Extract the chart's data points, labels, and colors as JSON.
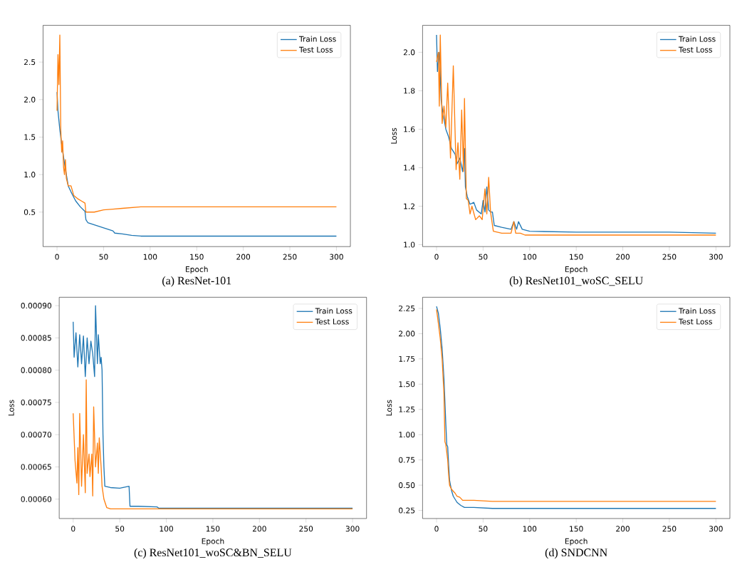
{
  "chart_data": [
    {
      "type": "line",
      "title": "(a) ResNet-101",
      "xlabel": "Epoch",
      "xlim": [
        -15,
        315
      ],
      "ylim": [
        0.04,
        2.99
      ],
      "xticks": [
        0,
        50,
        100,
        150,
        200,
        250,
        300
      ],
      "yticks": [
        0.5,
        {
          "value": 1.0,
          "label": "1.0"
        },
        1.5,
        {
          "value": 2.0,
          "label": "2.0"
        },
        2.5
      ],
      "legend": "top right",
      "grid": false,
      "marker": "none",
      "line_style": "solid",
      "series": [
        {
          "name": "Train Loss",
          "color": "#1f77b4",
          "x": [
            0,
            1,
            3,
            5,
            8,
            10,
            12,
            15,
            20,
            25,
            30,
            31,
            33,
            40,
            50,
            60,
            62,
            70,
            80,
            90,
            100,
            150,
            200,
            250,
            300
          ],
          "values": [
            2.1,
            1.85,
            1.6,
            1.4,
            1.15,
            1.0,
            0.85,
            0.77,
            0.65,
            0.57,
            0.51,
            0.4,
            0.36,
            0.33,
            0.29,
            0.25,
            0.22,
            0.21,
            0.19,
            0.18,
            0.18,
            0.18,
            0.18,
            0.18,
            0.18
          ]
        },
        {
          "name": "Test Loss",
          "color": "#ff7f0e",
          "x": [
            0,
            1,
            2,
            3,
            4,
            5,
            6,
            7,
            8,
            9,
            10,
            12,
            15,
            18,
            22,
            26,
            30,
            31,
            40,
            50,
            60,
            70,
            80,
            90,
            100,
            150,
            200,
            250,
            300
          ],
          "values": [
            1.85,
            2.6,
            2.2,
            2.86,
            1.6,
            1.3,
            1.45,
            1.1,
            1.0,
            1.2,
            0.95,
            0.85,
            0.85,
            0.72,
            0.68,
            0.65,
            0.62,
            0.5,
            0.5,
            0.53,
            0.54,
            0.55,
            0.56,
            0.57,
            0.57,
            0.57,
            0.57,
            0.57,
            0.57
          ]
        }
      ]
    },
    {
      "type": "line",
      "title": "(b) ResNet101_woSC_SELU",
      "xlabel": "Epoch",
      "ylabel": "Loss",
      "xlim": [
        -15,
        315
      ],
      "ylim": [
        0.99,
        2.14
      ],
      "xticks": [
        0,
        50,
        100,
        150,
        200,
        250,
        300
      ],
      "yticks": [
        {
          "value": 1.0,
          "label": "1.0"
        },
        1.2,
        1.4,
        1.6,
        1.8,
        {
          "value": 2.0,
          "label": "2.0"
        }
      ],
      "legend": "top right",
      "grid": false,
      "marker": "none",
      "line_style": "solid",
      "series": [
        {
          "name": "Train Loss",
          "color": "#1f77b4",
          "x": [
            0,
            1,
            3,
            5,
            7,
            10,
            13,
            16,
            20,
            22,
            25,
            28,
            30,
            31,
            33,
            36,
            40,
            43,
            48,
            50,
            52,
            54,
            56,
            58,
            60,
            62,
            70,
            80,
            83,
            86,
            88,
            92,
            100,
            150,
            200,
            250,
            300
          ],
          "values": [
            2.09,
            1.9,
            2.0,
            1.75,
            1.68,
            1.6,
            1.56,
            1.5,
            1.47,
            1.42,
            1.45,
            1.38,
            1.5,
            1.3,
            1.25,
            1.21,
            1.22,
            1.18,
            1.16,
            1.23,
            1.17,
            1.3,
            1.18,
            1.17,
            1.17,
            1.1,
            1.09,
            1.08,
            1.12,
            1.08,
            1.12,
            1.08,
            1.07,
            1.065,
            1.065,
            1.065,
            1.06
          ]
        },
        {
          "name": "Test Loss",
          "color": "#ff7f0e",
          "x": [
            0,
            2,
            3,
            4,
            6,
            8,
            10,
            12,
            15,
            18,
            21,
            23,
            25,
            27,
            29,
            30,
            32,
            34,
            36,
            38,
            42,
            46,
            49,
            52,
            54,
            56,
            58,
            61,
            70,
            80,
            83,
            85,
            90,
            95,
            100,
            150,
            200,
            250,
            300
          ],
          "values": [
            1.95,
            2.0,
            1.72,
            2.09,
            1.63,
            1.72,
            1.61,
            1.84,
            1.45,
            1.93,
            1.39,
            1.53,
            1.34,
            1.7,
            1.38,
            1.76,
            1.24,
            1.23,
            1.16,
            1.2,
            1.13,
            1.15,
            1.13,
            1.29,
            1.16,
            1.35,
            1.17,
            1.07,
            1.06,
            1.06,
            1.12,
            1.06,
            1.06,
            1.05,
            1.05,
            1.05,
            1.05,
            1.05,
            1.05
          ]
        }
      ]
    },
    {
      "type": "line",
      "title": "(c) ResNet101_woSC&BN_SELU",
      "xlabel": "Epoch",
      "ylabel": "Loss",
      "xlim": [
        -15,
        315
      ],
      "ylim": [
        0.00057,
        0.000913
      ],
      "xticks": [
        0,
        50,
        100,
        150,
        200,
        250,
        300
      ],
      "yticks": [
        {
          "value": 0.0006,
          "label": "0.00060"
        },
        {
          "value": 0.00065,
          "label": "0.00065"
        },
        {
          "value": 0.0007,
          "label": "0.00070"
        },
        {
          "value": 0.00075,
          "label": "0.00075"
        },
        {
          "value": 0.0008,
          "label": "0.00080"
        },
        {
          "value": 0.00085,
          "label": "0.00085"
        },
        {
          "value": 0.0009,
          "label": "0.00090"
        }
      ],
      "legend": "top right",
      "grid": false,
      "marker": "none",
      "line_style": "solid",
      "series": [
        {
          "name": "Train Loss",
          "color": "#1f77b4",
          "x": [
            0,
            1,
            3,
            5,
            7,
            9,
            11,
            13,
            15,
            17,
            19,
            21,
            23,
            24,
            26,
            27,
            29,
            30,
            31,
            32,
            33,
            34,
            40,
            50,
            60,
            61,
            70,
            90,
            92,
            120,
            300
          ],
          "values": [
            0.000875,
            0.00082,
            0.000858,
            0.000805,
            0.000855,
            0.00081,
            0.000853,
            0.00079,
            0.00085,
            0.00081,
            0.000845,
            0.000825,
            0.00079,
            0.0009,
            0.00081,
            0.000855,
            0.00081,
            0.00082,
            0.0008,
            0.0007,
            0.00065,
            0.00062,
            0.000618,
            0.000617,
            0.00062,
            0.000589,
            0.000589,
            0.000588,
            0.000586,
            0.000586,
            0.000586
          ]
        },
        {
          "name": "Test Loss",
          "color": "#ff7f0e",
          "x": [
            0,
            2,
            4,
            5,
            6,
            7,
            9,
            11,
            13,
            14,
            15,
            17,
            18,
            20,
            21,
            22,
            24,
            26,
            27,
            28,
            30,
            31,
            33,
            36,
            40,
            300
          ],
          "values": [
            0.000733,
            0.00066,
            0.000625,
            0.00068,
            0.000607,
            0.000733,
            0.00062,
            0.0007,
            0.00061,
            0.000785,
            0.00064,
            0.00067,
            0.000635,
            0.00067,
            0.000605,
            0.000743,
            0.00065,
            0.000687,
            0.00064,
            0.000695,
            0.00065,
            0.00062,
            0.0006,
            0.000587,
            0.000585,
            0.000585
          ]
        }
      ]
    },
    {
      "type": "line",
      "title": "(d) SNDCNN",
      "xlabel": "Epoch",
      "ylabel": "Loss",
      "xlim": [
        -15,
        315
      ],
      "ylim": [
        0.17,
        2.36
      ],
      "xticks": [
        0,
        50,
        100,
        150,
        200,
        250,
        300
      ],
      "yticks": [
        {
          "value": 0.25,
          "label": "0.25"
        },
        {
          "value": 0.5,
          "label": "0.50"
        },
        {
          "value": 0.75,
          "label": "0.75"
        },
        {
          "value": 1.0,
          "label": "1.00"
        },
        {
          "value": 1.25,
          "label": "1.25"
        },
        {
          "value": 1.5,
          "label": "1.50"
        },
        {
          "value": 1.75,
          "label": "1.75"
        },
        {
          "value": 2.0,
          "label": "2.00"
        },
        {
          "value": 2.25,
          "label": "2.25"
        }
      ],
      "legend": "top right",
      "grid": false,
      "marker": "none",
      "line_style": "solid",
      "series": [
        {
          "name": "Train Loss",
          "color": "#1f77b4",
          "x": [
            0,
            2,
            4,
            6,
            8,
            10,
            11,
            12,
            13,
            14,
            16,
            18,
            22,
            26,
            30,
            40,
            60,
            100,
            300
          ],
          "values": [
            2.27,
            2.2,
            2.05,
            1.85,
            1.55,
            1.1,
            0.9,
            0.88,
            0.7,
            0.55,
            0.45,
            0.39,
            0.33,
            0.3,
            0.28,
            0.28,
            0.27,
            0.27,
            0.27
          ]
        },
        {
          "name": "Test Loss",
          "color": "#ff7f0e",
          "x": [
            0,
            2,
            4,
            6,
            8,
            9,
            10,
            12,
            13,
            14,
            16,
            20,
            22,
            25,
            28,
            30,
            40,
            60,
            300
          ],
          "values": [
            2.24,
            2.1,
            1.95,
            1.75,
            1.4,
            0.93,
            0.9,
            0.75,
            0.6,
            0.5,
            0.46,
            0.42,
            0.39,
            0.38,
            0.35,
            0.35,
            0.35,
            0.34,
            0.34
          ]
        }
      ]
    }
  ]
}
